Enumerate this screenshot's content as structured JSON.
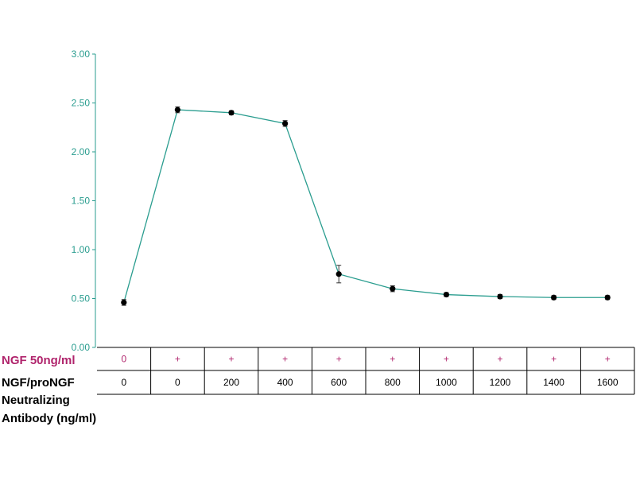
{
  "chart_data": {
    "type": "line",
    "title": "",
    "xlabel": "",
    "ylabel": "",
    "ylim": [
      0,
      3
    ],
    "yticks": [
      "0.00",
      "0.50",
      "1.00",
      "1.50",
      "2.00",
      "2.50",
      "3.00"
    ],
    "grid": false,
    "line_color": "#2a9d8f",
    "axis_color": "#2a9d8f",
    "marker_color": "#000000",
    "series": [
      {
        "values": [
          0.46,
          2.43,
          2.4,
          2.29,
          0.75,
          0.6,
          0.54,
          0.52,
          0.51,
          0.51
        ],
        "errors": [
          0.03,
          0.03,
          0.02,
          0.03,
          0.09,
          0.03,
          0.02,
          0.02,
          0.02,
          0.02
        ]
      }
    ],
    "table": {
      "ngf_label": "NGF 50ng/ml",
      "ngf_values": [
        "0",
        "+",
        "+",
        "+",
        "+",
        "+",
        "+",
        "+",
        "+",
        "+"
      ],
      "antibody_label_lines": [
        "NGF/proNGF",
        "Neutralizing",
        "Antibody (ng/ml)"
      ],
      "antibody_values": [
        "0",
        "0",
        "200",
        "400",
        "600",
        "800",
        "1000",
        "1200",
        "1400",
        "1600"
      ],
      "ngf_color": "#b0246c"
    }
  }
}
